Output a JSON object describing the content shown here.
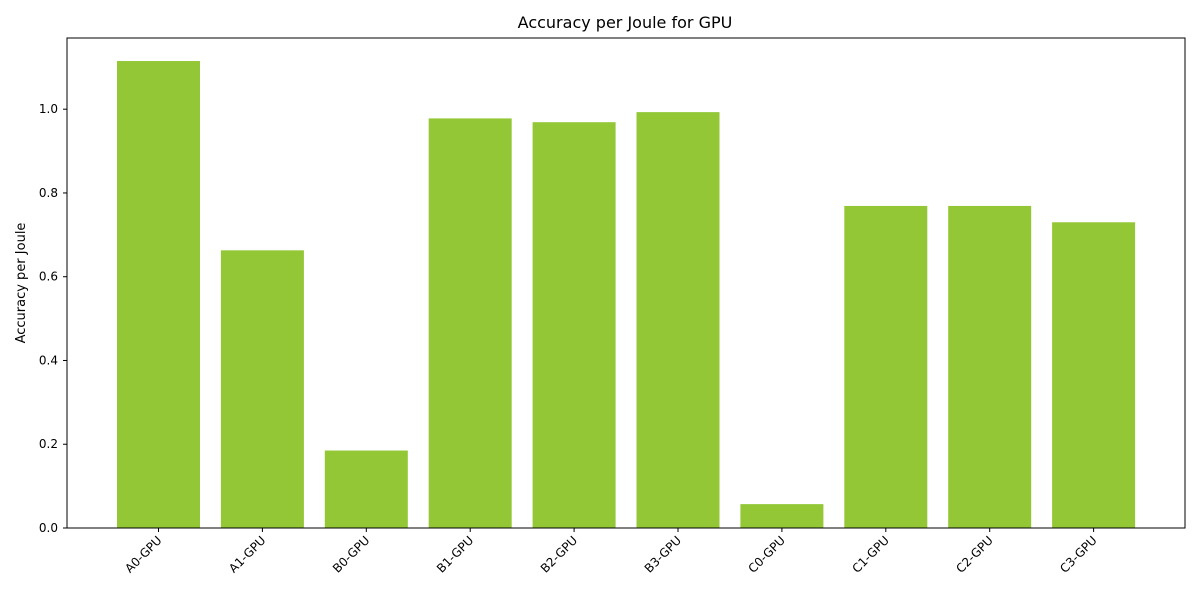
{
  "chart_data": {
    "type": "bar",
    "title": "Accuracy per Joule for GPU",
    "xlabel": "",
    "ylabel": "Accuracy per Joule",
    "categories": [
      "A0-GPU",
      "A1-GPU",
      "B0-GPU",
      "B1-GPU",
      "B2-GPU",
      "B3-GPU",
      "C0-GPU",
      "C1-GPU",
      "C2-GPU",
      "C3-GPU"
    ],
    "values": [
      1.115,
      0.663,
      0.185,
      0.978,
      0.969,
      0.993,
      0.057,
      0.769,
      0.769,
      0.73
    ],
    "ylim": [
      0,
      1.17
    ],
    "yticks": [
      0.0,
      0.2,
      0.4,
      0.6,
      0.8,
      1.0
    ],
    "ytick_labels": [
      "0.0",
      "0.2",
      "0.4",
      "0.6",
      "0.8",
      "1.0"
    ],
    "bar_color": "#93c736",
    "grid": false,
    "legend": "none"
  }
}
